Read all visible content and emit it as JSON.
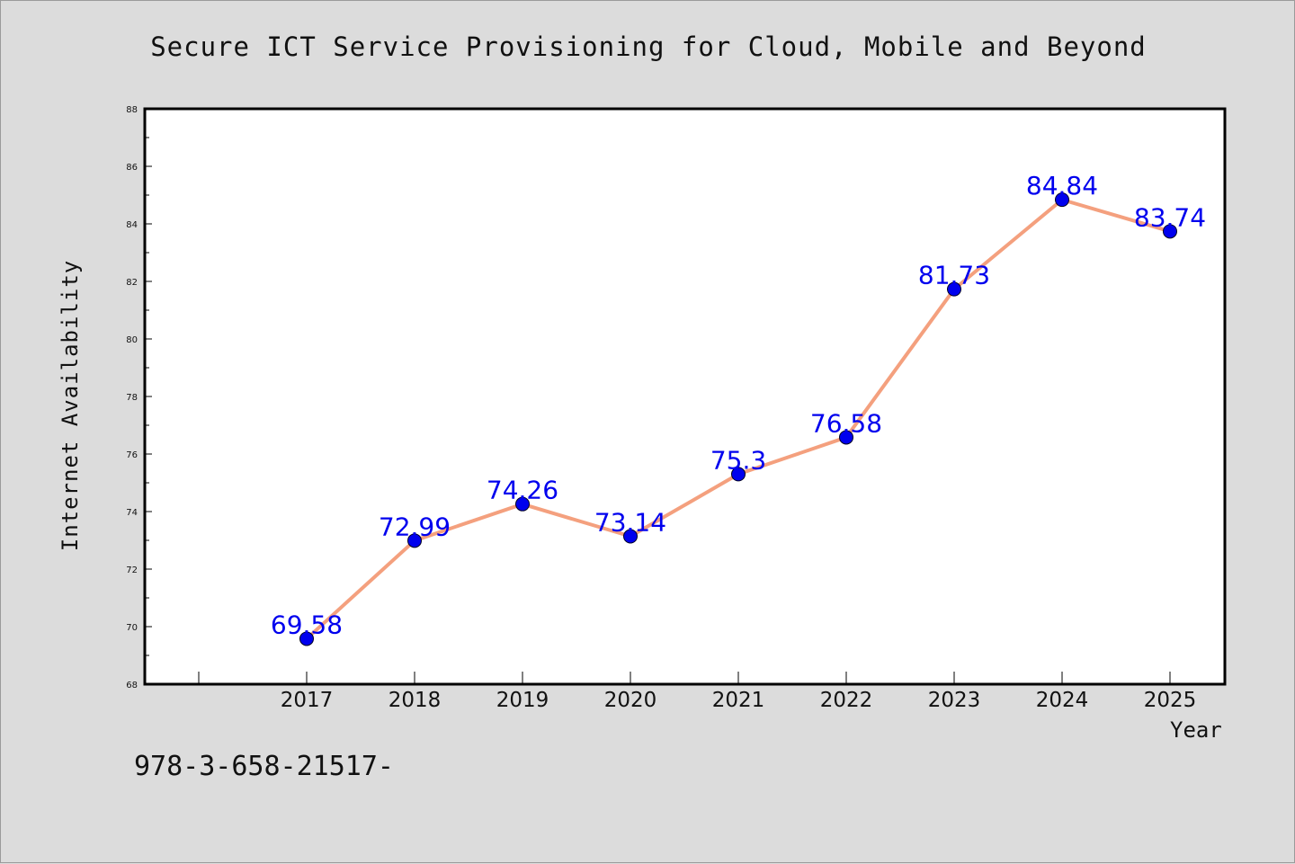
{
  "figure": {
    "title": "Secure ICT Service Provisioning for Cloud, Mobile and Beyond",
    "footnote": "978-3-658-21517-"
  },
  "chart_data": {
    "type": "line",
    "title": "Secure ICT Service Provisioning for Cloud, Mobile and Beyond",
    "xlabel": "Year",
    "ylabel": "Internet Availability",
    "categories": [
      "2017",
      "2018",
      "2019",
      "2020",
      "2021",
      "2022",
      "2023",
      "2024",
      "2025"
    ],
    "series": [
      {
        "values": [
          69.58,
          72.99,
          74.26,
          73.14,
          75.3,
          76.58,
          81.73,
          84.84,
          83.74
        ],
        "line_color": "#f4a07e",
        "marker_color": "#0000ee",
        "label_color": "#0000ee"
      }
    ],
    "data_labels": [
      "69.58",
      "72.99",
      "74.26",
      "73.14",
      "75.3",
      "76.58",
      "81.73",
      "84.84",
      "83.74"
    ],
    "ylim": [
      68,
      88
    ],
    "yticks": [
      68,
      70,
      72,
      74,
      76,
      78,
      80,
      82,
      84,
      86,
      88
    ],
    "grid": false,
    "legend": "none"
  }
}
